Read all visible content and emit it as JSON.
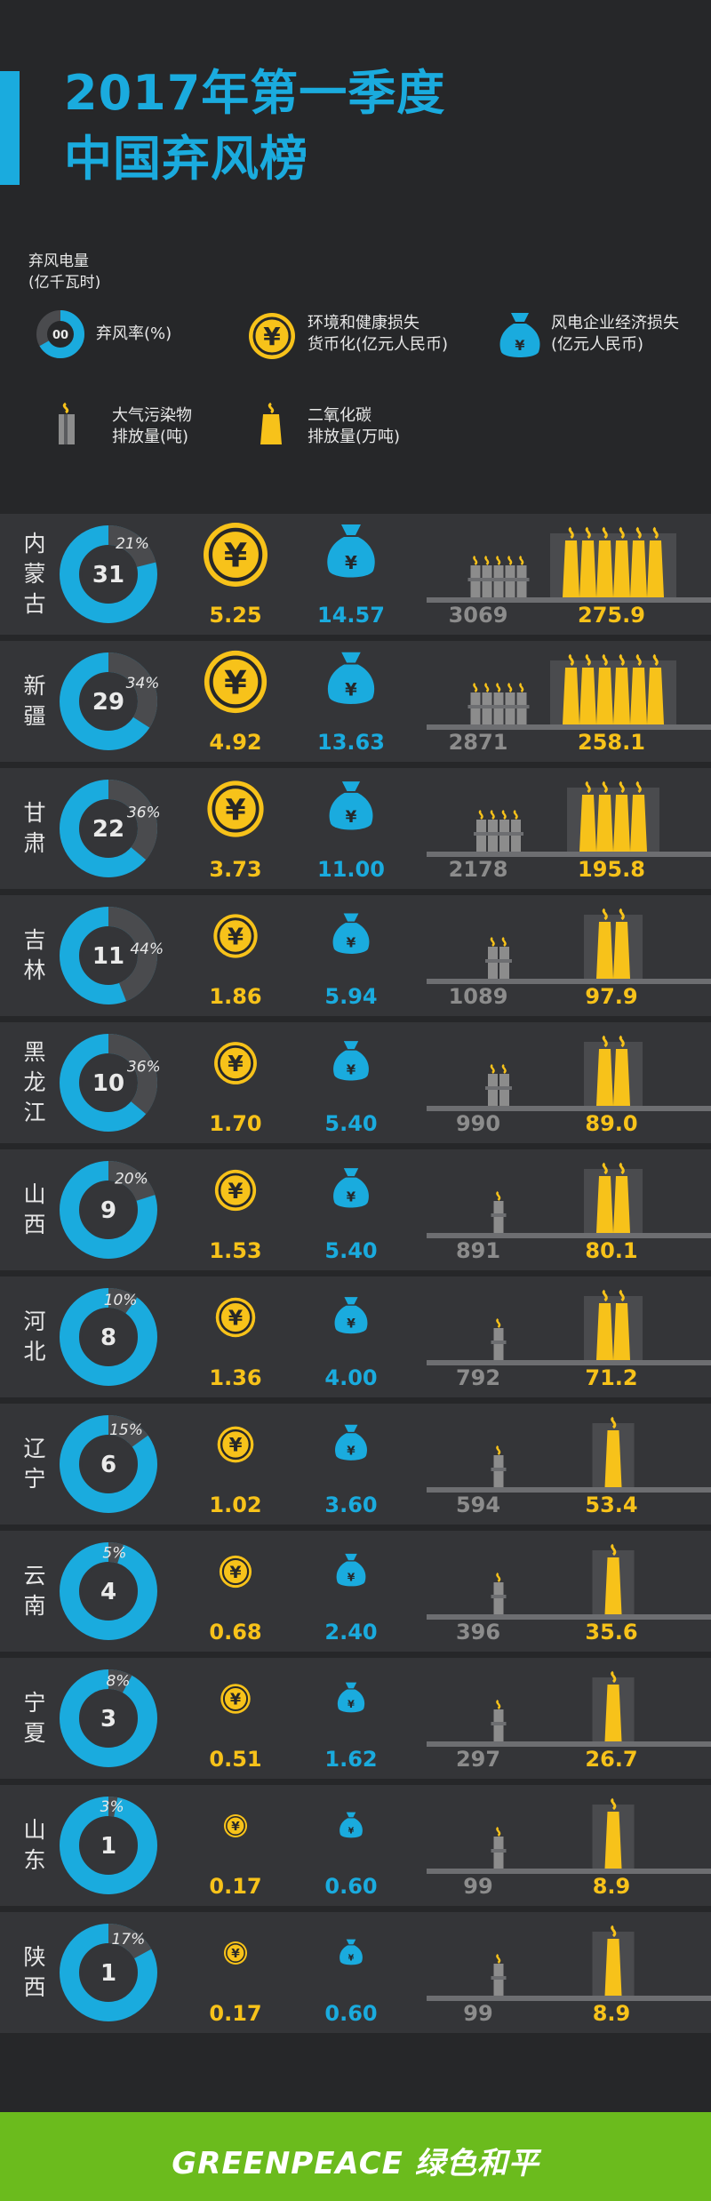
{
  "header": {
    "title_line1": "2017年第一季度",
    "title_line2": "中国弃风榜"
  },
  "legend": {
    "curtailed_power_label": "弃风电量\n(亿千瓦时)",
    "donut_sample_number": "00",
    "curtailment_rate_label": "弃风率(%)",
    "health_loss_label": "环境和健康损失\n货币化(亿元人民币)",
    "enterprise_loss_label": "风电企业经济损失\n(亿元人民币)",
    "air_pollutant_label": "大气污染物\n排放量(吨)",
    "co2_label": "二氧化碳\n排放量(万吨)",
    "yuan_symbol": "¥"
  },
  "colors": {
    "background": "#262729",
    "row_background": "#343538",
    "blue": "#1aabde",
    "yellow": "#f7c21a",
    "gray": "#8c8c8c",
    "dark_gray": "#4a4b4e",
    "footer_green": "#6bbb1d"
  },
  "icons": [
    "yuan-coin-icon",
    "money-bag-icon",
    "chimney-pollutant-icon",
    "chimney-co2-icon"
  ],
  "chart_data": {
    "type": "table",
    "columns": [
      "弃风电量(亿千瓦时)",
      "弃风率(%)",
      "环境和健康损失货币化(亿元人民币)",
      "风电企业经济损失(亿元人民币)",
      "大气污染物排放量(吨)",
      "二氧化碳排放量(万吨)"
    ],
    "rows": [
      {
        "province": "内蒙古",
        "power": "31",
        "rate": 21,
        "rate_label": "21%",
        "health_loss": "5.25",
        "enterprise_loss": "14.57",
        "pollutant": "3069",
        "co2": "275.9"
      },
      {
        "province": "新疆",
        "power": "29",
        "rate": 34,
        "rate_label": "34%",
        "health_loss": "4.92",
        "enterprise_loss": "13.63",
        "pollutant": "2871",
        "co2": "258.1"
      },
      {
        "province": "甘肃",
        "power": "22",
        "rate": 36,
        "rate_label": "36%",
        "health_loss": "3.73",
        "enterprise_loss": "11.00",
        "pollutant": "2178",
        "co2": "195.8"
      },
      {
        "province": "吉林",
        "power": "11",
        "rate": 44,
        "rate_label": "44%",
        "health_loss": "1.86",
        "enterprise_loss": "5.94",
        "pollutant": "1089",
        "co2": "97.9"
      },
      {
        "province": "黑龙江",
        "power": "10",
        "rate": 36,
        "rate_label": "36%",
        "health_loss": "1.70",
        "enterprise_loss": "5.40",
        "pollutant": "990",
        "co2": "89.0"
      },
      {
        "province": "山西",
        "power": "9",
        "rate": 20,
        "rate_label": "20%",
        "health_loss": "1.53",
        "enterprise_loss": "5.40",
        "pollutant": "891",
        "co2": "80.1"
      },
      {
        "province": "河北",
        "power": "8",
        "rate": 10,
        "rate_label": "10%",
        "health_loss": "1.36",
        "enterprise_loss": "4.00",
        "pollutant": "792",
        "co2": "71.2"
      },
      {
        "province": "辽宁",
        "power": "6",
        "rate": 15,
        "rate_label": "15%",
        "health_loss": "1.02",
        "enterprise_loss": "3.60",
        "pollutant": "594",
        "co2": "53.4"
      },
      {
        "province": "云南",
        "power": "4",
        "rate": 5,
        "rate_label": "5%",
        "health_loss": "0.68",
        "enterprise_loss": "2.40",
        "pollutant": "396",
        "co2": "35.6"
      },
      {
        "province": "宁夏",
        "power": "3",
        "rate": 8,
        "rate_label": "8%",
        "health_loss": "0.51",
        "enterprise_loss": "1.62",
        "pollutant": "297",
        "co2": "26.7"
      },
      {
        "province": "山东",
        "power": "1",
        "rate": 3,
        "rate_label": "3%",
        "health_loss": "0.17",
        "enterprise_loss": "0.60",
        "pollutant": "99",
        "co2": "8.9"
      },
      {
        "province": "陕西",
        "power": "1",
        "rate": 17,
        "rate_label": "17%",
        "health_loss": "0.17",
        "enterprise_loss": "0.60",
        "pollutant": "99",
        "co2": "8.9"
      }
    ]
  },
  "footer": {
    "brand": "GREENPEACE 绿色和平"
  }
}
